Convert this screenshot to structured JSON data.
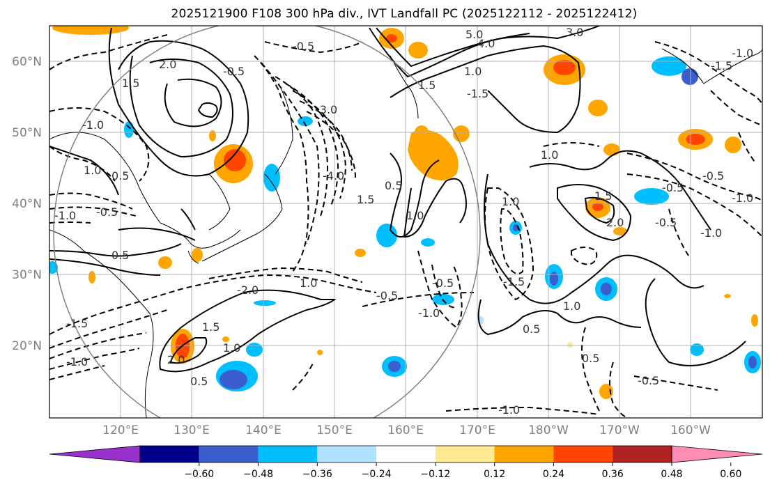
{
  "title": "2025121900 F108 300 hPa div., IVT Landfall PC (2025122112 - 2025122412)",
  "lat_labels": [
    "60°N",
    "50°N",
    "40°N",
    "30°N",
    "20°N"
  ],
  "lon_labels": [
    "120°E",
    "130°E",
    "140°E",
    "150°E",
    "160°E",
    "170°E",
    "180°W",
    "170°W",
    "160°W"
  ],
  "colorbar": {
    "ticks": [
      "−0.60",
      "−0.48",
      "−0.36",
      "−0.24",
      "−0.12",
      "0.12",
      "0.24",
      "0.36",
      "0.48",
      "0.60"
    ],
    "colors": [
      "#9932cc",
      "#00008b",
      "#3a5fcd",
      "#00bfff",
      "#b0e2ff",
      "#ffffff",
      "#ffe991",
      "#ffa500",
      "#ff4500",
      "#b22222",
      "#ff8cb4"
    ]
  },
  "contour_labels": [
    {
      "text": "-0.5"
    },
    {
      "text": "5.0"
    },
    {
      "text": "4.0"
    },
    {
      "text": "3.0"
    },
    {
      "text": "1.0"
    },
    {
      "text": "-1.5"
    },
    {
      "text": "-3.0"
    },
    {
      "text": "-4.0"
    },
    {
      "text": "2.0"
    },
    {
      "text": "-0.5"
    },
    {
      "text": "0.5"
    },
    {
      "text": "1.5"
    },
    {
      "text": "1.0"
    },
    {
      "text": "1.5"
    },
    {
      "text": "2.0"
    },
    {
      "text": "-1.0"
    },
    {
      "text": "-1.5"
    },
    {
      "text": "-0.5"
    },
    {
      "text": "-1.0"
    },
    {
      "text": "1.5"
    },
    {
      "text": "1.0"
    },
    {
      "text": "0.5"
    },
    {
      "text": "-2.0"
    },
    {
      "text": "1.0"
    },
    {
      "text": "0.5"
    },
    {
      "text": "2.0"
    },
    {
      "text": "1.5"
    },
    {
      "text": "1.0"
    },
    {
      "text": "-0.5"
    },
    {
      "text": "-1.0"
    },
    {
      "text": "-0.5"
    },
    {
      "text": "0.5"
    },
    {
      "text": "-1.0"
    },
    {
      "text": "-1.5"
    },
    {
      "text": "-0.5"
    },
    {
      "text": "0.5"
    },
    {
      "text": "1.0"
    },
    {
      "text": "-1.0"
    },
    {
      "text": "1.0"
    },
    {
      "text": "-0.5"
    },
    {
      "text": "-0.5"
    },
    {
      "text": "-1.0"
    },
    {
      "text": "0.5"
    },
    {
      "text": "-1.0"
    },
    {
      "text": "1.0"
    },
    {
      "text": "1.5"
    },
    {
      "text": "-0.5"
    },
    {
      "text": "-1.5"
    },
    {
      "text": "-1.0"
    }
  ]
}
